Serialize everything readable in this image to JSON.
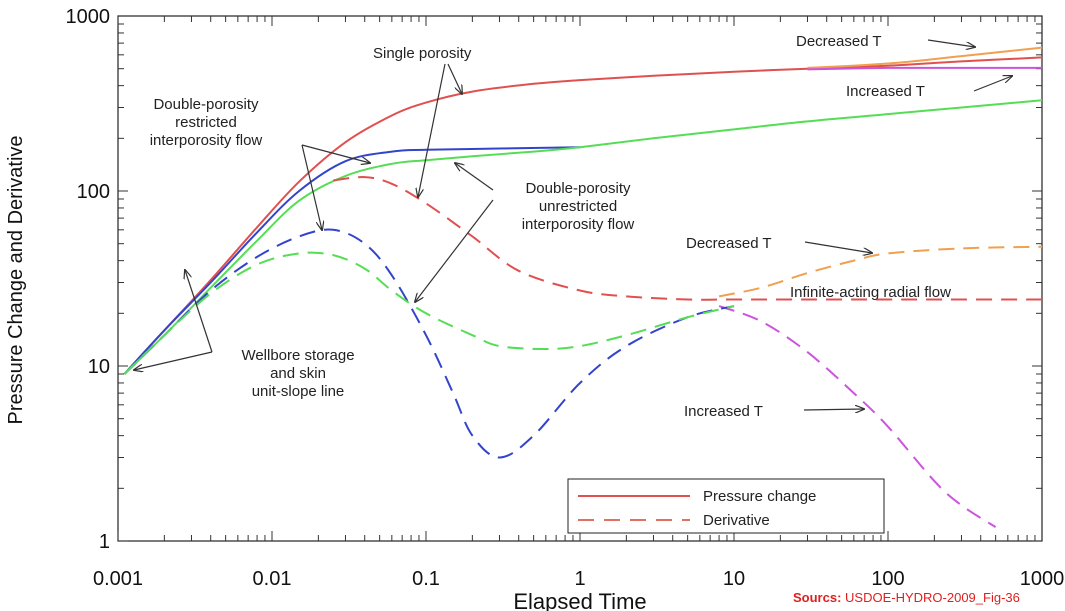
{
  "chart_data": {
    "type": "line",
    "title": "",
    "xlabel": "Elapsed Time",
    "ylabel": "Pressure Change and Derivative",
    "x_scale": "log",
    "y_scale": "log",
    "xlim": [
      0.001,
      1000
    ],
    "ylim": [
      1,
      1000
    ],
    "x_ticks": [
      "0.001",
      "0.01",
      "0.1",
      "1",
      "10",
      "100",
      "1000"
    ],
    "y_ticks": [
      "1",
      "10",
      "100",
      "1000"
    ],
    "grid": false,
    "legend_position": "bottom-center",
    "legend": [
      {
        "label": "Pressure change",
        "style": "solid"
      },
      {
        "label": "Derivative",
        "style": "dashed"
      }
    ],
    "series": [
      {
        "style": "solid",
        "color": "#e05050",
        "x": [
          0.0011,
          0.002,
          0.004,
          0.008,
          0.015,
          0.03,
          0.06,
          0.1,
          0.2,
          0.5,
          1,
          3,
          10,
          30,
          100,
          300,
          1000
        ],
        "y": [
          9,
          16,
          31,
          62,
          113,
          190,
          270,
          320,
          370,
          410,
          430,
          455,
          480,
          500,
          520,
          550,
          580
        ]
      },
      {
        "style": "solid",
        "color": "#f0a050",
        "x": [
          30,
          100,
          300,
          1000
        ],
        "y": [
          505,
          535,
          590,
          660
        ]
      },
      {
        "style": "solid",
        "color": "#cc55dd",
        "x": [
          30,
          100,
          300,
          1000
        ],
        "y": [
          495,
          505,
          505,
          505
        ]
      },
      {
        "style": "solid",
        "color": "#3344cc",
        "x": [
          0.0011,
          0.002,
          0.004,
          0.008,
          0.015,
          0.03,
          0.06,
          0.1,
          0.3,
          1
        ],
        "y": [
          9,
          16,
          30,
          58,
          100,
          148,
          168,
          172,
          175,
          178
        ]
      },
      {
        "style": "solid",
        "color": "#55dd55",
        "x": [
          0.0011,
          0.002,
          0.004,
          0.008,
          0.015,
          0.03,
          0.06,
          0.1,
          0.2,
          0.5,
          1,
          3,
          10,
          30,
          100,
          300,
          1000
        ],
        "y": [
          9,
          15,
          28,
          52,
          88,
          122,
          143,
          150,
          158,
          168,
          178,
          200,
          225,
          250,
          275,
          300,
          330
        ]
      },
      {
        "style": "dashed",
        "color": "#e05050",
        "x": [
          0.025,
          0.04,
          0.06,
          0.1,
          0.2,
          0.4,
          1,
          2,
          5,
          10,
          30,
          100,
          300,
          1000
        ],
        "y": [
          115,
          120,
          110,
          85,
          55,
          35,
          27,
          25,
          24,
          24,
          24,
          24,
          24,
          24
        ]
      },
      {
        "style": "dashed",
        "color": "#f0a050",
        "x": [
          8,
          15,
          30,
          60,
          100,
          300,
          1000
        ],
        "y": [
          25,
          28,
          34,
          40,
          44,
          47,
          48
        ]
      },
      {
        "style": "dashed",
        "color": "#cc55dd",
        "x": [
          8,
          15,
          30,
          60,
          100,
          200,
          300,
          500
        ],
        "y": [
          22,
          18,
          12,
          7,
          4.5,
          2.2,
          1.6,
          1.2
        ]
      },
      {
        "style": "dashed",
        "color": "#3344cc",
        "x": [
          0.0011,
          0.002,
          0.004,
          0.008,
          0.015,
          0.025,
          0.04,
          0.06,
          0.1,
          0.15,
          0.2,
          0.3,
          0.5,
          1,
          2,
          5,
          10
        ],
        "y": [
          9,
          15,
          27,
          42,
          55,
          60,
          50,
          33,
          15,
          7,
          4,
          3,
          4,
          8,
          13,
          19,
          22
        ]
      },
      {
        "style": "dashed",
        "color": "#55dd55",
        "x": [
          0.0011,
          0.002,
          0.004,
          0.008,
          0.015,
          0.025,
          0.04,
          0.06,
          0.1,
          0.2,
          0.3,
          0.6,
          1,
          2,
          5,
          10
        ],
        "y": [
          9,
          15,
          26,
          38,
          44,
          43,
          36,
          27,
          20,
          15,
          13,
          12.5,
          13,
          15,
          19,
          22
        ]
      }
    ],
    "annotations": [
      {
        "text": "Decreased T"
      },
      {
        "text": "Single porosity"
      },
      {
        "text": "Increased T"
      },
      {
        "text": "Double-porosity restricted interporosity flow"
      },
      {
        "text": "Double-porosity unrestricted interporosity flow"
      },
      {
        "text": "Decreased T"
      },
      {
        "text": "Infinite-acting radial flow"
      },
      {
        "text": "Wellbore storage and skin unit-slope line"
      },
      {
        "text": "Increased T"
      }
    ]
  },
  "source": {
    "label": "Sourcs:",
    "text": " USDOE-HYDRO-2009_Fig-36"
  }
}
